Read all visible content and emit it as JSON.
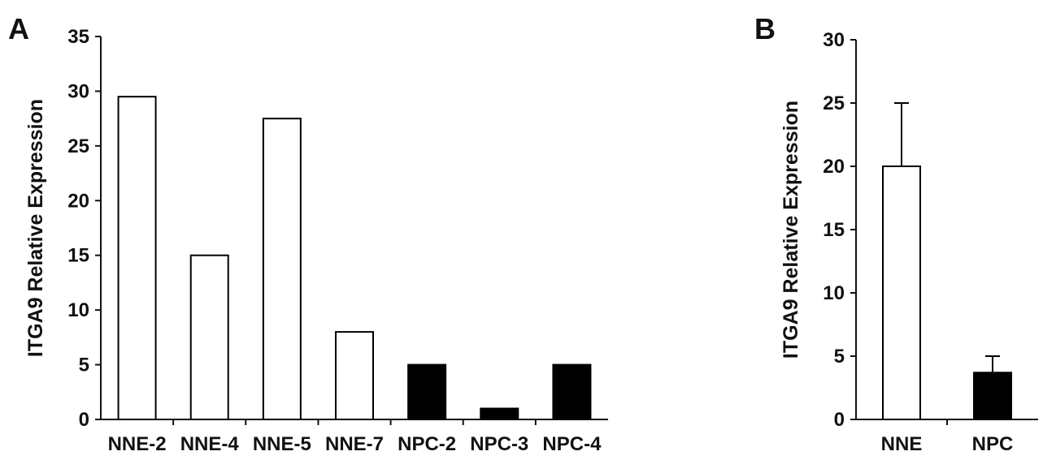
{
  "colors": {
    "nne": "#ffffff",
    "npc": "#000000",
    "stroke": "#000000"
  },
  "chart_data": [
    {
      "type": "bar",
      "panel": "A",
      "ylabel": "ITGA9 Relative Expression",
      "ylim": [
        0,
        35
      ],
      "yticks": [
        0,
        5,
        10,
        15,
        20,
        25,
        30,
        35
      ],
      "categories": [
        "NNE-2",
        "NNE-4",
        "NNE-5",
        "NNE-7",
        "NPC-2",
        "NPC-3",
        "NPC-4"
      ],
      "values": [
        29.5,
        15,
        27.5,
        8,
        5,
        1,
        5
      ],
      "groups": [
        "nne",
        "nne",
        "nne",
        "nne",
        "npc",
        "npc",
        "npc"
      ],
      "grid": false
    },
    {
      "type": "bar",
      "panel": "B",
      "ylabel": "ITGA9 Relative Expression",
      "ylim": [
        0,
        30
      ],
      "yticks": [
        0,
        5,
        10,
        15,
        20,
        25,
        30
      ],
      "categories": [
        "NNE",
        "NPC"
      ],
      "values": [
        20,
        3.7
      ],
      "error_upper": [
        5,
        1.3
      ],
      "groups": [
        "nne",
        "npc"
      ],
      "grid": false
    }
  ]
}
